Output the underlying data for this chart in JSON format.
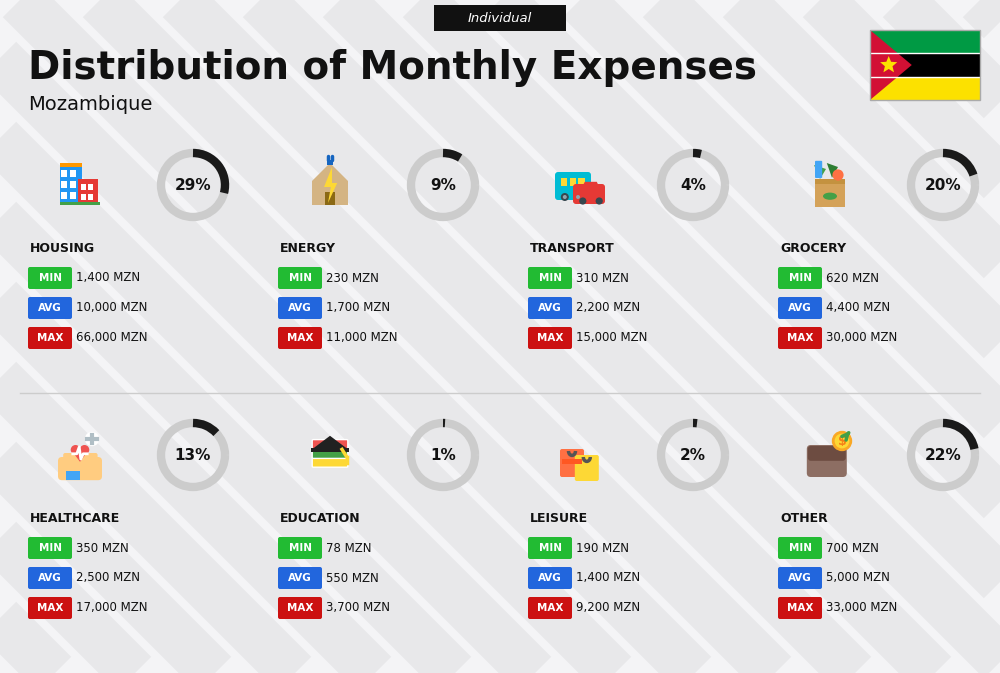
{
  "title": "Distribution of Monthly Expenses",
  "subtitle": "Individual",
  "country": "Mozambique",
  "bg_color": "#f4f4f6",
  "categories": [
    {
      "name": "HOUSING",
      "percent": 29,
      "min": "1,400 MZN",
      "avg": "10,000 MZN",
      "max": "66,000 MZN",
      "row": 0,
      "col": 0
    },
    {
      "name": "ENERGY",
      "percent": 9,
      "min": "230 MZN",
      "avg": "1,700 MZN",
      "max": "11,000 MZN",
      "row": 0,
      "col": 1
    },
    {
      "name": "TRANSPORT",
      "percent": 4,
      "min": "310 MZN",
      "avg": "2,200 MZN",
      "max": "15,000 MZN",
      "row": 0,
      "col": 2
    },
    {
      "name": "GROCERY",
      "percent": 20,
      "min": "620 MZN",
      "avg": "4,400 MZN",
      "max": "30,000 MZN",
      "row": 0,
      "col": 3
    },
    {
      "name": "HEALTHCARE",
      "percent": 13,
      "min": "350 MZN",
      "avg": "2,500 MZN",
      "max": "17,000 MZN",
      "row": 1,
      "col": 0
    },
    {
      "name": "EDUCATION",
      "percent": 1,
      "min": "78 MZN",
      "avg": "550 MZN",
      "max": "3,700 MZN",
      "row": 1,
      "col": 1
    },
    {
      "name": "LEISURE",
      "percent": 2,
      "min": "190 MZN",
      "avg": "1,400 MZN",
      "max": "9,200 MZN",
      "row": 1,
      "col": 2
    },
    {
      "name": "OTHER",
      "percent": 22,
      "min": "700 MZN",
      "avg": "5,000 MZN",
      "max": "33,000 MZN",
      "row": 1,
      "col": 3
    }
  ],
  "min_color": "#22bb33",
  "avg_color": "#2266dd",
  "max_color": "#cc1111",
  "value_text_color": "#111111",
  "category_name_color": "#111111",
  "percent_color": "#111111",
  "ring_filled_color": "#1a1a1a",
  "ring_empty_color": "#cccccc",
  "title_color": "#111111",
  "subtitle_bg": "#111111",
  "subtitle_text_color": "#ffffff",
  "stripe_color": "#e8e8ea",
  "divider_color": "#cccccc"
}
